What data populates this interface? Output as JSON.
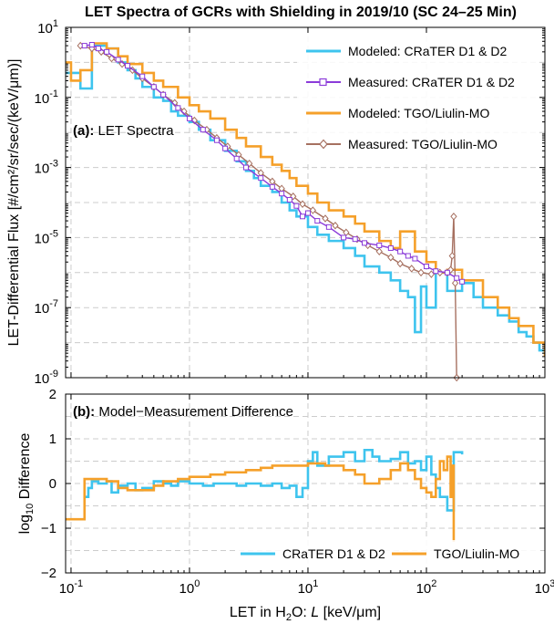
{
  "chart_data": [
    {
      "id": "a",
      "type": "line",
      "title": "LET Spectra of GCRs with Shielding in 2019/10 (SC 24–25 Min)",
      "panel_label_bold": "(a):",
      "panel_label_text": " LET Spectra",
      "ylabel": "LET-Differential Flux [#/cm²/sr/sec/(keV/μm)]",
      "xscale": "log",
      "yscale": "log",
      "xlim": [
        0.09,
        1000
      ],
      "ylim": [
        1e-09,
        10
      ],
      "xticks": [
        0.1,
        1,
        10,
        100,
        1000
      ],
      "yticks": [
        1e-09,
        1e-07,
        1e-05,
        0.001,
        0.1,
        10
      ],
      "ytick_labels": [
        {
          "base": "10",
          "exp": "-9"
        },
        {
          "base": "10",
          "exp": "-7"
        },
        {
          "base": "10",
          "exp": "-5"
        },
        {
          "base": "10",
          "exp": "-3"
        },
        {
          "base": "10",
          "exp": "-1"
        },
        {
          "base": "10",
          "exp": "1"
        }
      ],
      "grid": true,
      "legend_position": "top-right",
      "series": [
        {
          "name": "Modeled: CRaTER D1 & D2",
          "color": "#3ec4ee",
          "style": "step",
          "x": [
            0.09,
            0.12,
            0.15,
            0.2,
            0.25,
            0.3,
            0.35,
            0.4,
            0.5,
            0.6,
            0.7,
            0.8,
            1.0,
            1.2,
            1.5,
            2,
            2.5,
            3,
            3.5,
            4,
            5,
            6,
            7,
            8,
            10,
            12,
            15,
            20,
            25,
            30,
            40,
            50,
            60,
            70,
            80,
            90,
            100,
            120,
            150,
            200,
            250,
            300,
            400,
            500,
            600,
            700,
            800,
            900,
            1000
          ],
          "y": [
            0.5,
            0.18,
            3.0,
            2.5,
            1.0,
            0.6,
            0.35,
            0.2,
            0.1,
            0.08,
            0.04,
            0.03,
            0.02,
            0.012,
            0.006,
            0.003,
            0.0015,
            0.0008,
            0.0005,
            0.0003,
            0.0002,
            0.0001,
            6e-05,
            4e-05,
            2e-05,
            1.2e-05,
            8e-06,
            5e-06,
            3e-06,
            1.5e-06,
            1e-06,
            6e-07,
            3e-07,
            2e-07,
            2e-08,
            4e-07,
            1e-07,
            1e-06,
            3e-07,
            5e-07,
            2e-07,
            1e-07,
            6e-08,
            4e-08,
            2e-08,
            1.5e-08,
            1e-08,
            6e-09,
            5e-09
          ]
        },
        {
          "name": "Measured: CRaTER D1 & D2",
          "color": "#8b3bd9",
          "style": "line-square",
          "x": [
            0.13,
            0.15,
            0.17,
            0.2,
            0.25,
            0.3,
            0.4,
            0.5,
            0.6,
            0.8,
            1.0,
            1.3,
            1.7,
            2,
            2.5,
            3,
            4,
            5,
            6,
            7,
            8,
            9,
            10,
            12,
            15,
            20,
            25,
            30,
            40,
            50,
            60,
            70,
            80,
            100,
            120,
            150,
            180,
            200
          ],
          "y": [
            3.0,
            3.2,
            2.5,
            2.0,
            1.2,
            0.8,
            0.4,
            0.2,
            0.12,
            0.05,
            0.025,
            0.012,
            0.006,
            0.0035,
            0.0018,
            0.001,
            0.0005,
            0.00028,
            0.00018,
            0.00012,
            8e-05,
            4e-05,
            5e-05,
            3e-05,
            2e-05,
            1e-05,
            9e-06,
            7e-06,
            6e-06,
            5e-06,
            4e-06,
            3e-06,
            2.5e-06,
            1.5e-06,
            1.1e-06,
            1e-06,
            7e-07,
            5.5e-07
          ]
        },
        {
          "name": "Modeled: TGO/Liulin-MO",
          "color": "#f5a02a",
          "style": "step",
          "x": [
            0.09,
            0.1,
            0.12,
            0.15,
            0.2,
            0.25,
            0.3,
            0.4,
            0.5,
            0.6,
            0.8,
            1.0,
            1.2,
            1.5,
            2,
            2.5,
            3,
            4,
            5,
            6,
            7,
            8,
            10,
            12,
            15,
            20,
            25,
            30,
            40,
            50,
            60,
            80,
            100,
            120,
            150,
            200,
            300,
            400,
            500,
            600,
            800,
            1000
          ],
          "y": [
            1.0,
            0.3,
            0.6,
            3.5,
            2.5,
            1.5,
            0.9,
            0.5,
            0.3,
            0.2,
            0.1,
            0.06,
            0.04,
            0.025,
            0.012,
            0.007,
            0.004,
            0.002,
            0.0012,
            0.0008,
            0.0005,
            0.0003,
            0.00018,
            0.0001,
            6e-05,
            4e-05,
            2.5e-05,
            1.5e-05,
            8e-06,
            5e-06,
            1.5e-05,
            4e-06,
            2e-06,
            1e-06,
            1.2e-06,
            6e-07,
            2e-07,
            1e-07,
            5e-08,
            3e-08,
            1e-08,
            4e-09
          ]
        },
        {
          "name": "Measured: TGO/Liulin-MO",
          "color": "#a67060",
          "style": "line-diamond",
          "x": [
            0.12,
            0.15,
            0.18,
            0.22,
            0.27,
            0.33,
            0.4,
            0.5,
            0.6,
            0.75,
            0.9,
            1.1,
            1.4,
            1.7,
            2.1,
            2.6,
            3.2,
            4,
            5,
            6,
            7.5,
            9,
            11,
            14,
            17,
            21,
            26,
            32,
            40,
            50,
            60,
            75,
            90,
            110,
            130,
            150,
            160,
            165,
            170,
            175,
            180
          ],
          "y": [
            3.0,
            2.5,
            2.0,
            1.3,
            0.9,
            0.6,
            0.35,
            0.2,
            0.12,
            0.07,
            0.04,
            0.022,
            0.012,
            0.007,
            0.004,
            0.0023,
            0.0013,
            0.0007,
            0.0004,
            0.00025,
            0.00015,
            9e-05,
            6e-05,
            3.5e-05,
            2.2e-05,
            1.4e-05,
            9e-06,
            6e-06,
            4e-06,
            2.7e-06,
            1.8e-06,
            1.3e-06,
            1e-06,
            9e-07,
            1e-06,
            1e-06,
            1.2e-06,
            3e-06,
            4e-05,
            5e-07,
            1e-09
          ]
        }
      ]
    },
    {
      "id": "b",
      "type": "line",
      "panel_label_bold": "(b):",
      "panel_label_text": " Model−Measurement Difference",
      "xlabel_main": "LET in H",
      "xlabel_sub": "2",
      "xlabel_mid": "O: ",
      "xlabel_italic": "L",
      "xlabel_end": " [keV/μm]",
      "ylabel_prefix": "log",
      "ylabel_sub": "10",
      "ylabel_suffix": " Difference",
      "xscale": "log",
      "xlim": [
        0.09,
        1000
      ],
      "ylim": [
        -2,
        2
      ],
      "xticks": [
        0.1,
        1,
        10,
        100,
        1000
      ],
      "xtick_labels": [
        {
          "base": "10",
          "exp": "-1"
        },
        {
          "base": "10",
          "exp": "0"
        },
        {
          "base": "10",
          "exp": "1"
        },
        {
          "base": "10",
          "exp": "2"
        },
        {
          "base": "10",
          "exp": "3"
        }
      ],
      "yticks": [
        -2,
        -1,
        0,
        1,
        2
      ],
      "ytick_labels": [
        "−2",
        "−1",
        "0",
        "1",
        "2"
      ],
      "grid": true,
      "legend_position": "bottom",
      "series": [
        {
          "name": "CRaTER D1 & D2",
          "color": "#3ec4ee",
          "x": [
            0.13,
            0.14,
            0.15,
            0.17,
            0.2,
            0.22,
            0.25,
            0.3,
            0.35,
            0.4,
            0.5,
            0.6,
            0.7,
            0.8,
            1.0,
            1.3,
            1.6,
            2,
            2.5,
            3,
            4,
            5,
            6,
            7,
            8,
            9,
            10,
            11,
            12,
            15,
            20,
            25,
            30,
            35,
            40,
            50,
            60,
            70,
            80,
            90,
            100,
            110,
            120,
            130,
            150,
            170,
            200
          ],
          "y": [
            -0.3,
            -0.1,
            0.05,
            0.0,
            0.05,
            -0.2,
            -0.05,
            0.0,
            -0.15,
            -0.1,
            0.05,
            0.0,
            -0.05,
            0.05,
            0.0,
            -0.05,
            0.0,
            0.0,
            -0.05,
            0.0,
            -0.05,
            0.0,
            -0.1,
            -0.05,
            -0.3,
            -0.1,
            0.5,
            0.7,
            0.4,
            0.6,
            0.7,
            0.5,
            0.75,
            0.6,
            0.5,
            0.55,
            0.7,
            0.45,
            0.5,
            0.3,
            0.6,
            0.2,
            -0.1,
            -0.3,
            -0.6,
            0.7,
            0.65
          ]
        },
        {
          "name": "TGO/Liulin-MO",
          "color": "#f5a02a",
          "x": [
            0.09,
            0.12,
            0.13,
            0.15,
            0.2,
            0.25,
            0.3,
            0.4,
            0.5,
            0.6,
            0.8,
            1.0,
            1.5,
            2,
            3,
            4,
            5,
            7,
            10,
            14,
            20,
            25,
            30,
            40,
            50,
            60,
            70,
            80,
            90,
            100,
            110,
            120,
            130,
            140,
            150,
            160,
            165,
            170
          ],
          "y": [
            -0.8,
            -0.8,
            0.1,
            0.1,
            0.05,
            -0.1,
            -0.15,
            -0.15,
            -0.05,
            0.05,
            0.1,
            0.15,
            0.2,
            0.25,
            0.3,
            0.35,
            0.4,
            0.4,
            0.45,
            0.4,
            0.3,
            0.2,
            0.0,
            0.1,
            0.3,
            0.45,
            0.3,
            0.1,
            -0.1,
            -0.2,
            -0.3,
            0.1,
            0.5,
            0.3,
            0.6,
            -0.3,
            0.4,
            -1.3
          ]
        }
      ]
    }
  ],
  "legend_a": {
    "items": [
      {
        "label": "Modeled: CRaTER D1 & D2",
        "color": "#3ec4ee",
        "marker": "none"
      },
      {
        "label": "Measured: CRaTER D1 & D2",
        "color": "#8b3bd9",
        "marker": "square"
      },
      {
        "label": "Modeled: TGO/Liulin-MO",
        "color": "#f5a02a",
        "marker": "none"
      },
      {
        "label": "Measured: TGO/Liulin-MO",
        "color": "#a67060",
        "marker": "diamond"
      }
    ]
  },
  "legend_b": {
    "items": [
      {
        "label": "CRaTER D1 & D2",
        "color": "#3ec4ee"
      },
      {
        "label": "TGO/Liulin-MO",
        "color": "#f5a02a"
      }
    ]
  }
}
